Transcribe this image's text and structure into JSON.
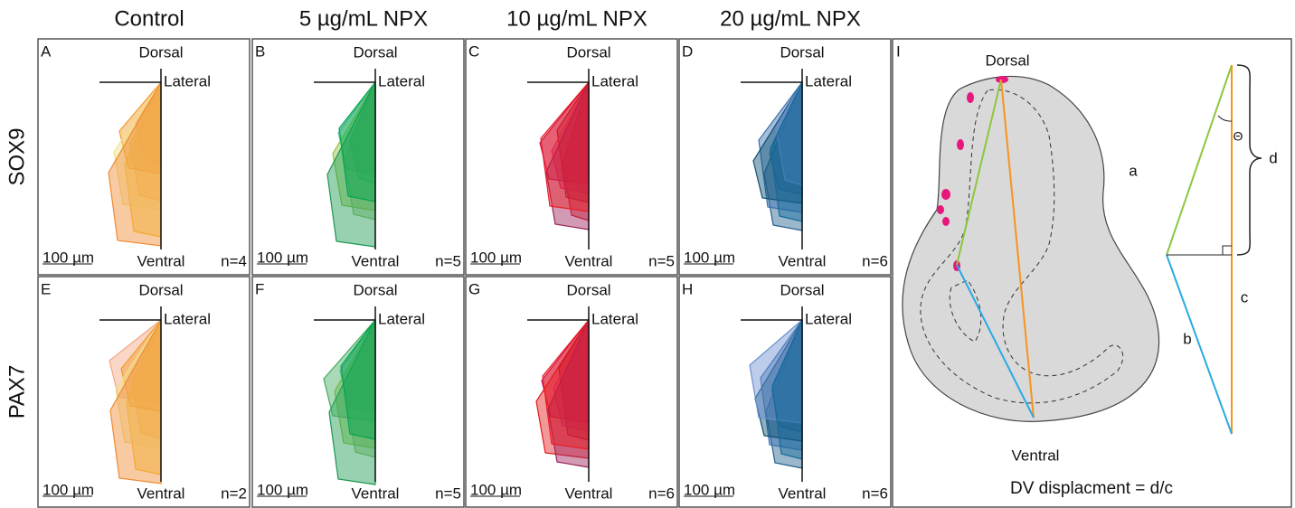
{
  "column_headers": [
    "Control",
    "5 µg/mL NPX",
    "10 µg/mL NPX",
    "20 µg/mL NPX"
  ],
  "row_labels": [
    "SOX9",
    "PAX7"
  ],
  "panels": [
    {
      "letter": "A",
      "dorsal": "Dorsal",
      "lateral": "Lateral",
      "ventral": "Ventral",
      "scale": "100 µm",
      "n": "n=4"
    },
    {
      "letter": "B",
      "dorsal": "Dorsal",
      "lateral": "Lateral",
      "ventral": "Ventral",
      "scale": "100 µm",
      "n": "n=5"
    },
    {
      "letter": "C",
      "dorsal": "Dorsal",
      "lateral": "Lateral",
      "ventral": "Ventral",
      "scale": "100 µm",
      "n": "n=5"
    },
    {
      "letter": "D",
      "dorsal": "Dorsal",
      "lateral": "Lateral",
      "ventral": "Ventral",
      "scale": "100 µm",
      "n": "n=6"
    },
    {
      "letter": "E",
      "dorsal": "Dorsal",
      "lateral": "Lateral",
      "ventral": "Ventral",
      "scale": "100 µm",
      "n": "n=2"
    },
    {
      "letter": "F",
      "dorsal": "Dorsal",
      "lateral": "Lateral",
      "ventral": "Ventral",
      "scale": "100 µm",
      "n": "n=5"
    },
    {
      "letter": "G",
      "dorsal": "Dorsal",
      "lateral": "Lateral",
      "ventral": "Ventral",
      "scale": "100 µm",
      "n": "n=6"
    },
    {
      "letter": "H",
      "dorsal": "Dorsal",
      "lateral": "Lateral",
      "ventral": "Ventral",
      "scale": "100 µm",
      "n": "n=6"
    }
  ],
  "schematic": {
    "letter": "I",
    "dorsal": "Dorsal",
    "ventral": "Ventral",
    "a": "a",
    "b": "b",
    "c": "c",
    "d": "d",
    "theta": "Θ",
    "formula": "DV displacment = d/c"
  }
}
